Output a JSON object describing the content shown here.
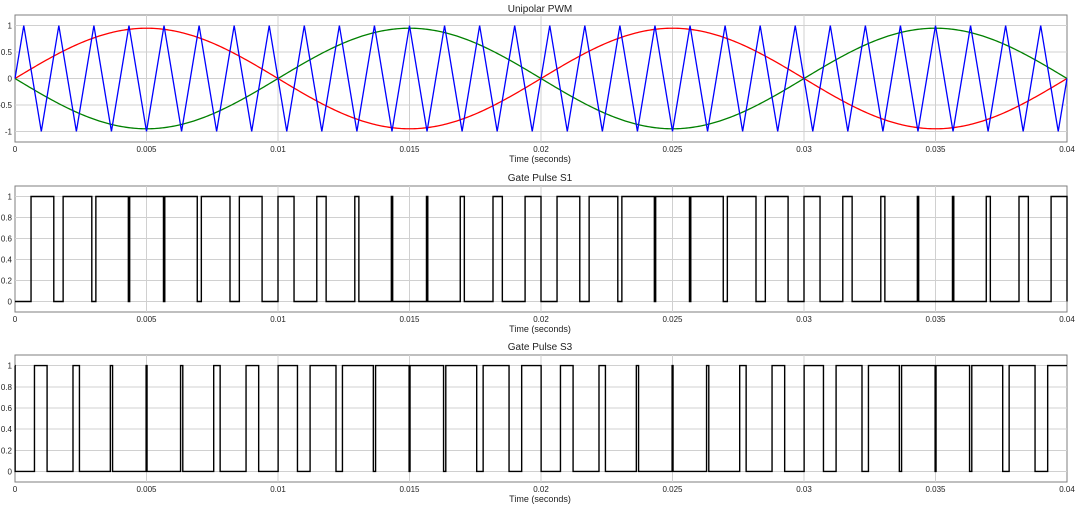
{
  "chart_data": [
    {
      "type": "line",
      "title": "Unipolar PWM",
      "xlabel": "Time (seconds)",
      "ylabel": "",
      "xlim": [
        0,
        0.04
      ],
      "ylim": [
        -1.2,
        1.2
      ],
      "x_ticks": [
        "0",
        "0.005",
        "0.01",
        "0.015",
        "0.02",
        "0.025",
        "0.03",
        "0.035",
        "0.04"
      ],
      "y_ticks": [
        "-1",
        "-0.5",
        "0",
        "0.5",
        "1"
      ],
      "grid": true,
      "series": [
        {
          "color": "#ff0000",
          "function": "sine",
          "frequency_hz": 50,
          "amplitude": 0.95,
          "phase_deg": 0
        },
        {
          "color": "#008000",
          "function": "sine",
          "frequency_hz": 50,
          "amplitude": 0.95,
          "phase_deg": 180
        },
        {
          "color": "#0000ff",
          "function": "triangle",
          "frequency_hz": 750,
          "amplitude": 1,
          "starts_at": 0
        }
      ]
    },
    {
      "type": "line",
      "title": "Gate Pulse S1",
      "xlabel": "Time (seconds)",
      "ylabel": "",
      "xlim": [
        0,
        0.04
      ],
      "ylim": [
        -0.1,
        1.1
      ],
      "x_ticks": [
        "0",
        "0.005",
        "0.01",
        "0.015",
        "0.02",
        "0.025",
        "0.03",
        "0.035",
        "0.04"
      ],
      "y_ticks": [
        "0",
        "0.2",
        "0.4",
        "0.6",
        "0.8",
        "1"
      ],
      "grid": true,
      "series": [
        {
          "color": "#000000",
          "function": "pwm_compare",
          "reference": "red_sine",
          "carrier": "blue_triangle",
          "high": 1,
          "low": 0
        }
      ]
    },
    {
      "type": "line",
      "title": "Gate Pulse S3",
      "xlabel": "Time (seconds)",
      "ylabel": "",
      "xlim": [
        0,
        0.04
      ],
      "ylim": [
        -0.1,
        1.1
      ],
      "x_ticks": [
        "0",
        "0.005",
        "0.01",
        "0.015",
        "0.02",
        "0.025",
        "0.03",
        "0.035",
        "0.04"
      ],
      "y_ticks": [
        "0",
        "0.2",
        "0.4",
        "0.6",
        "0.8",
        "1"
      ],
      "grid": true,
      "series": [
        {
          "color": "#000000",
          "function": "pwm_compare",
          "reference": "green_sine",
          "carrier": "blue_triangle",
          "high": 1,
          "low": 0
        }
      ]
    }
  ]
}
